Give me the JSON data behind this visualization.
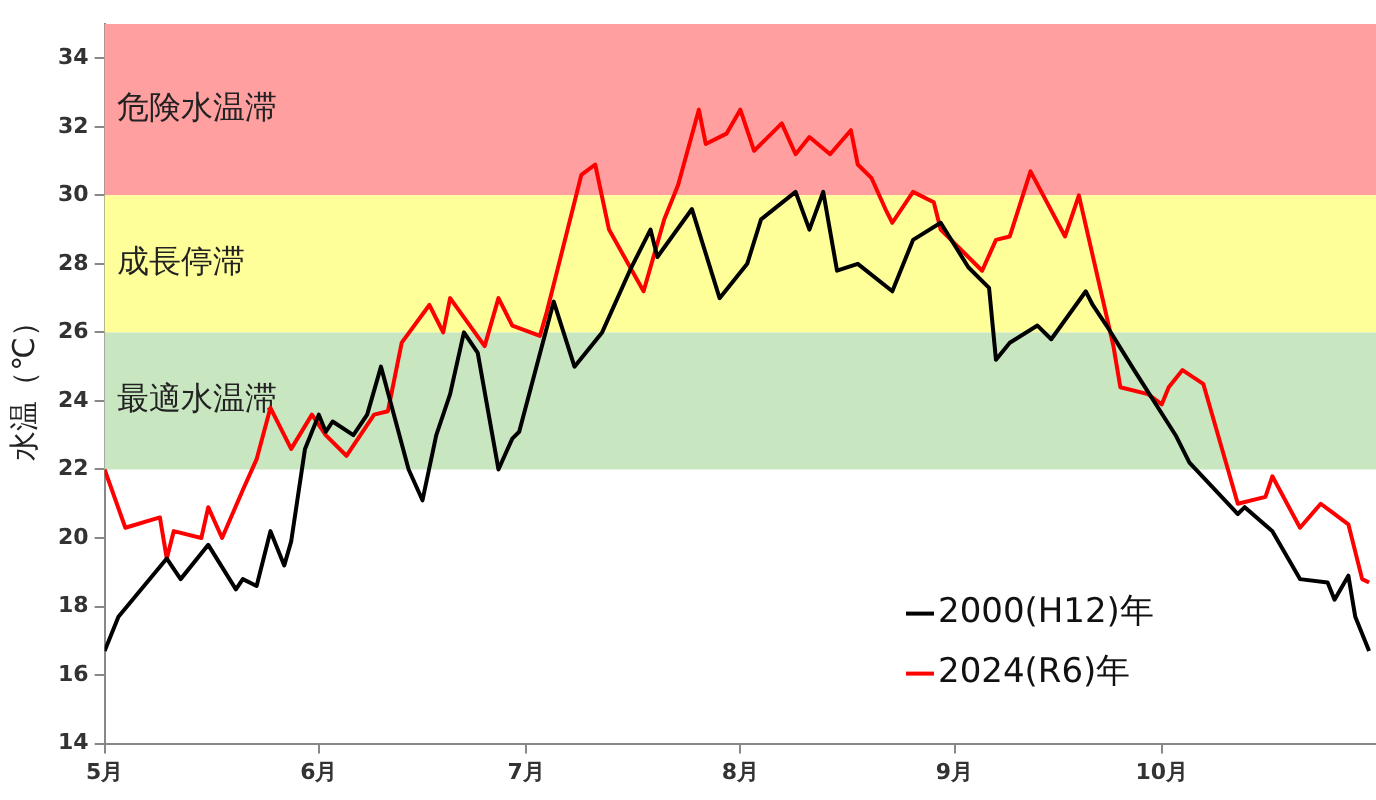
{
  "chart_data": {
    "type": "line",
    "ylabel": "水温（℃）",
    "xlim": [
      "--05-01",
      "--11-01"
    ],
    "xticks": [
      {
        "value": "--05-01",
        "label": "5月"
      },
      {
        "value": "--06-01",
        "label": "6月"
      },
      {
        "value": "--07-01",
        "label": "7月"
      },
      {
        "value": "--08-01",
        "label": "8月"
      },
      {
        "value": "--09-01",
        "label": "9月"
      },
      {
        "value": "--10-01",
        "label": "10月"
      }
    ],
    "ylim": [
      14,
      35
    ],
    "yticks": [
      14,
      16,
      18,
      20,
      22,
      24,
      26,
      28,
      30,
      32,
      34
    ],
    "grid": false,
    "legend": "bottom right",
    "marker": "none",
    "line_style": "solid",
    "bands": [
      {
        "axis": "y",
        "from": 30,
        "to": 35,
        "label": "危険水温滞",
        "color": "#ff9f9f"
      },
      {
        "axis": "y",
        "from": 26,
        "to": 30,
        "label": "成長停滞",
        "color": "#ffff99"
      },
      {
        "axis": "y",
        "from": 22,
        "to": 26,
        "label": "最適水温滞",
        "color": "#c8e6c0"
      }
    ],
    "series": [
      {
        "name": "2000(H12)年",
        "color": "#000000",
        "x": [
          "--05-01",
          "--05-03",
          "--05-10",
          "--05-12",
          "--05-16",
          "--05-20",
          "--05-21",
          "--05-23",
          "--05-25",
          "--05-27",
          "--05-28",
          "--05-30",
          "--06-01",
          "--06-02",
          "--06-03",
          "--06-06",
          "--06-08",
          "--06-10",
          "--06-14",
          "--06-16",
          "--06-18",
          "--06-20",
          "--06-22",
          "--06-24",
          "--06-27",
          "--06-29",
          "--06-30",
          "--07-05",
          "--07-08",
          "--07-12",
          "--07-16",
          "--07-19",
          "--07-20",
          "--07-25",
          "--07-29",
          "--08-02",
          "--08-04",
          "--08-09",
          "--08-11",
          "--08-13",
          "--08-15",
          "--08-18",
          "--08-23",
          "--08-26",
          "--08-30",
          "--09-03",
          "--09-06",
          "--09-07",
          "--09-09",
          "--09-13",
          "--09-15",
          "--09-20",
          "--09-21",
          "--09-23",
          "--09-27",
          "--10-03",
          "--10-05",
          "--10-12",
          "--10-13",
          "--10-17",
          "--10-21",
          "--10-25",
          "--10-26",
          "--10-28",
          "--10-29",
          "--10-31"
        ],
        "values": [
          16.7,
          17.7,
          19.4,
          18.8,
          19.8,
          18.5,
          18.8,
          18.6,
          20.2,
          19.2,
          19.9,
          22.6,
          23.6,
          23.1,
          23.4,
          23.0,
          23.6,
          25.0,
          22.0,
          21.1,
          23.0,
          24.2,
          26.0,
          25.4,
          22.0,
          22.9,
          23.1,
          26.9,
          25.0,
          26.0,
          27.8,
          29.0,
          28.2,
          29.6,
          27.0,
          28.0,
          29.3,
          30.1,
          29.0,
          30.1,
          27.8,
          28.0,
          27.2,
          28.7,
          29.2,
          27.9,
          27.3,
          25.2,
          25.7,
          26.2,
          25.8,
          27.2,
          26.8,
          26.2,
          24.9,
          23.0,
          22.2,
          20.7,
          20.9,
          20.2,
          18.8,
          18.7,
          18.2,
          18.9,
          17.7,
          16.7
        ]
      },
      {
        "name": "2024(R6)年",
        "color": "#ff0000",
        "x": [
          "--05-01",
          "--05-04",
          "--05-09",
          "--05-10",
          "--05-11",
          "--05-15",
          "--05-16",
          "--05-18",
          "--05-21",
          "--05-23",
          "--05-25",
          "--05-28",
          "--05-31",
          "--06-02",
          "--06-05",
          "--06-09",
          "--06-11",
          "--06-13",
          "--06-17",
          "--06-19",
          "--06-20",
          "--06-25",
          "--06-27",
          "--06-29",
          "--07-03",
          "--07-04",
          "--07-09",
          "--07-11",
          "--07-13",
          "--07-18",
          "--07-21",
          "--07-23",
          "--07-26",
          "--07-27",
          "--07-30",
          "--08-01",
          "--08-03",
          "--08-07",
          "--08-09",
          "--08-11",
          "--08-14",
          "--08-17",
          "--08-18",
          "--08-20",
          "--08-22",
          "--08-23",
          "--08-26",
          "--08-29",
          "--08-30",
          "--09-05",
          "--09-07",
          "--09-09",
          "--09-12",
          "--09-17",
          "--09-19",
          "--09-24",
          "--09-25",
          "--09-29",
          "--10-01",
          "--10-02",
          "--10-04",
          "--10-07",
          "--10-12",
          "--10-16",
          "--10-17",
          "--10-21",
          "--10-24",
          "--10-28",
          "--10-30",
          "--10-31"
        ],
        "values": [
          22.0,
          20.3,
          20.6,
          19.4,
          20.2,
          20.0,
          20.9,
          20.0,
          21.4,
          22.3,
          23.8,
          22.6,
          23.6,
          23.0,
          22.4,
          23.6,
          23.7,
          25.7,
          26.8,
          26.0,
          27.0,
          25.6,
          27.0,
          26.2,
          25.9,
          26.6,
          30.6,
          30.9,
          29.0,
          27.2,
          29.3,
          30.3,
          32.5,
          31.5,
          31.8,
          32.5,
          31.3,
          32.1,
          31.2,
          31.7,
          31.2,
          31.9,
          30.9,
          30.5,
          29.6,
          29.2,
          30.1,
          29.8,
          29.0,
          27.8,
          28.7,
          28.8,
          30.7,
          28.8,
          30.0,
          25.6,
          24.4,
          24.2,
          23.9,
          24.4,
          24.9,
          24.5,
          21.0,
          21.2,
          21.8,
          20.3,
          21.0,
          20.4,
          18.8,
          18.7
        ]
      }
    ]
  }
}
